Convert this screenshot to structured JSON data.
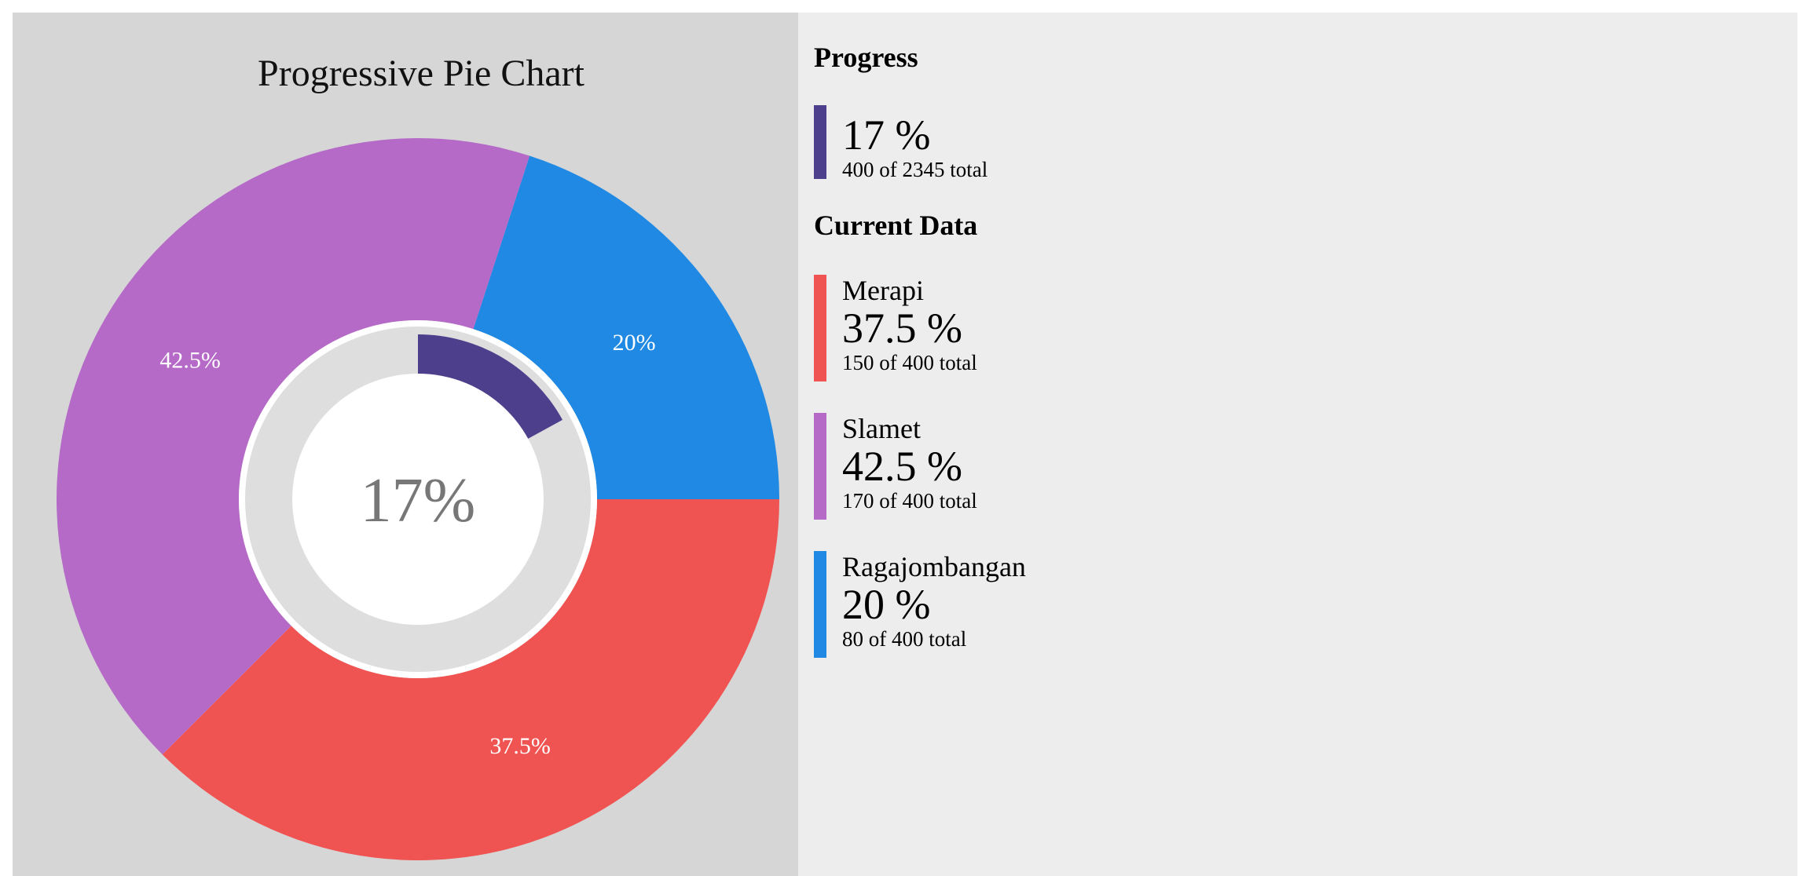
{
  "chart_data": [
    {
      "type": "pie",
      "title": "Progressive Pie Chart",
      "categories": [
        "Ragajombangan",
        "Merapi",
        "Slamet"
      ],
      "values": [
        80,
        150,
        170
      ],
      "percent_labels": [
        "20%",
        "37.5%",
        "42.5%"
      ],
      "colors": [
        "#2089e3",
        "#f05452",
        "#b66ac8"
      ],
      "center_label": "17%",
      "progress": {
        "value": 400,
        "total": 2345,
        "fraction": 0.17,
        "color": "#4e3f8d"
      }
    }
  ],
  "sidebar": {
    "progress_title": "Progress",
    "progress": {
      "value_text": "17 %",
      "sub_text": "400 of 2345 total",
      "color": "#4e3f8d"
    },
    "current_title": "Current Data",
    "items": [
      {
        "name": "Merapi",
        "value_text": "37.5 %",
        "sub_text": "150 of 400 total",
        "color": "#f05452"
      },
      {
        "name": "Slamet",
        "value_text": "42.5 %",
        "sub_text": "170 of 400 total",
        "color": "#b66ac8"
      },
      {
        "name": "Ragajombangan",
        "value_text": "20 %",
        "sub_text": "80 of 400 total",
        "color": "#2089e3"
      }
    ]
  }
}
